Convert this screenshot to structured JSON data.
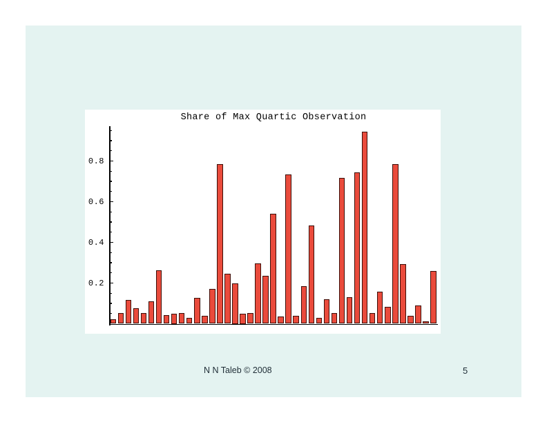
{
  "slide": {
    "background_color": "#e4f3f1",
    "footer": "N N Taleb © 2008",
    "page_number": "5"
  },
  "chart_data": {
    "type": "bar",
    "title": "Share of Max Quartic Observation",
    "xlabel": "",
    "ylabel": "",
    "ylim": [
      0,
      0.97
    ],
    "grid": false,
    "legend": false,
    "x_tick_labels": [],
    "ytick_values": [
      0.2,
      0.4,
      0.6,
      0.8
    ],
    "ytick_labels": [
      "0.2",
      "0.4",
      "0.6",
      "0.8"
    ],
    "minor_tick_step": 0.05,
    "bar_color": "#ea4b3c",
    "bar_edge_color": "#3a0e08",
    "values": [
      0.022,
      0.053,
      0.118,
      0.076,
      0.053,
      0.11,
      0.262,
      0.044,
      0.05,
      0.053,
      0.028,
      0.128,
      0.038,
      0.17,
      0.785,
      0.247,
      0.2,
      0.05,
      0.054,
      0.297,
      0.237,
      0.54,
      0.035,
      0.735,
      0.038,
      0.186,
      0.482,
      0.028,
      0.122,
      0.052,
      0.718,
      0.13,
      0.745,
      0.943,
      0.052,
      0.158,
      0.082,
      0.785,
      0.292,
      0.038,
      0.089,
      0.012,
      0.258
    ]
  }
}
